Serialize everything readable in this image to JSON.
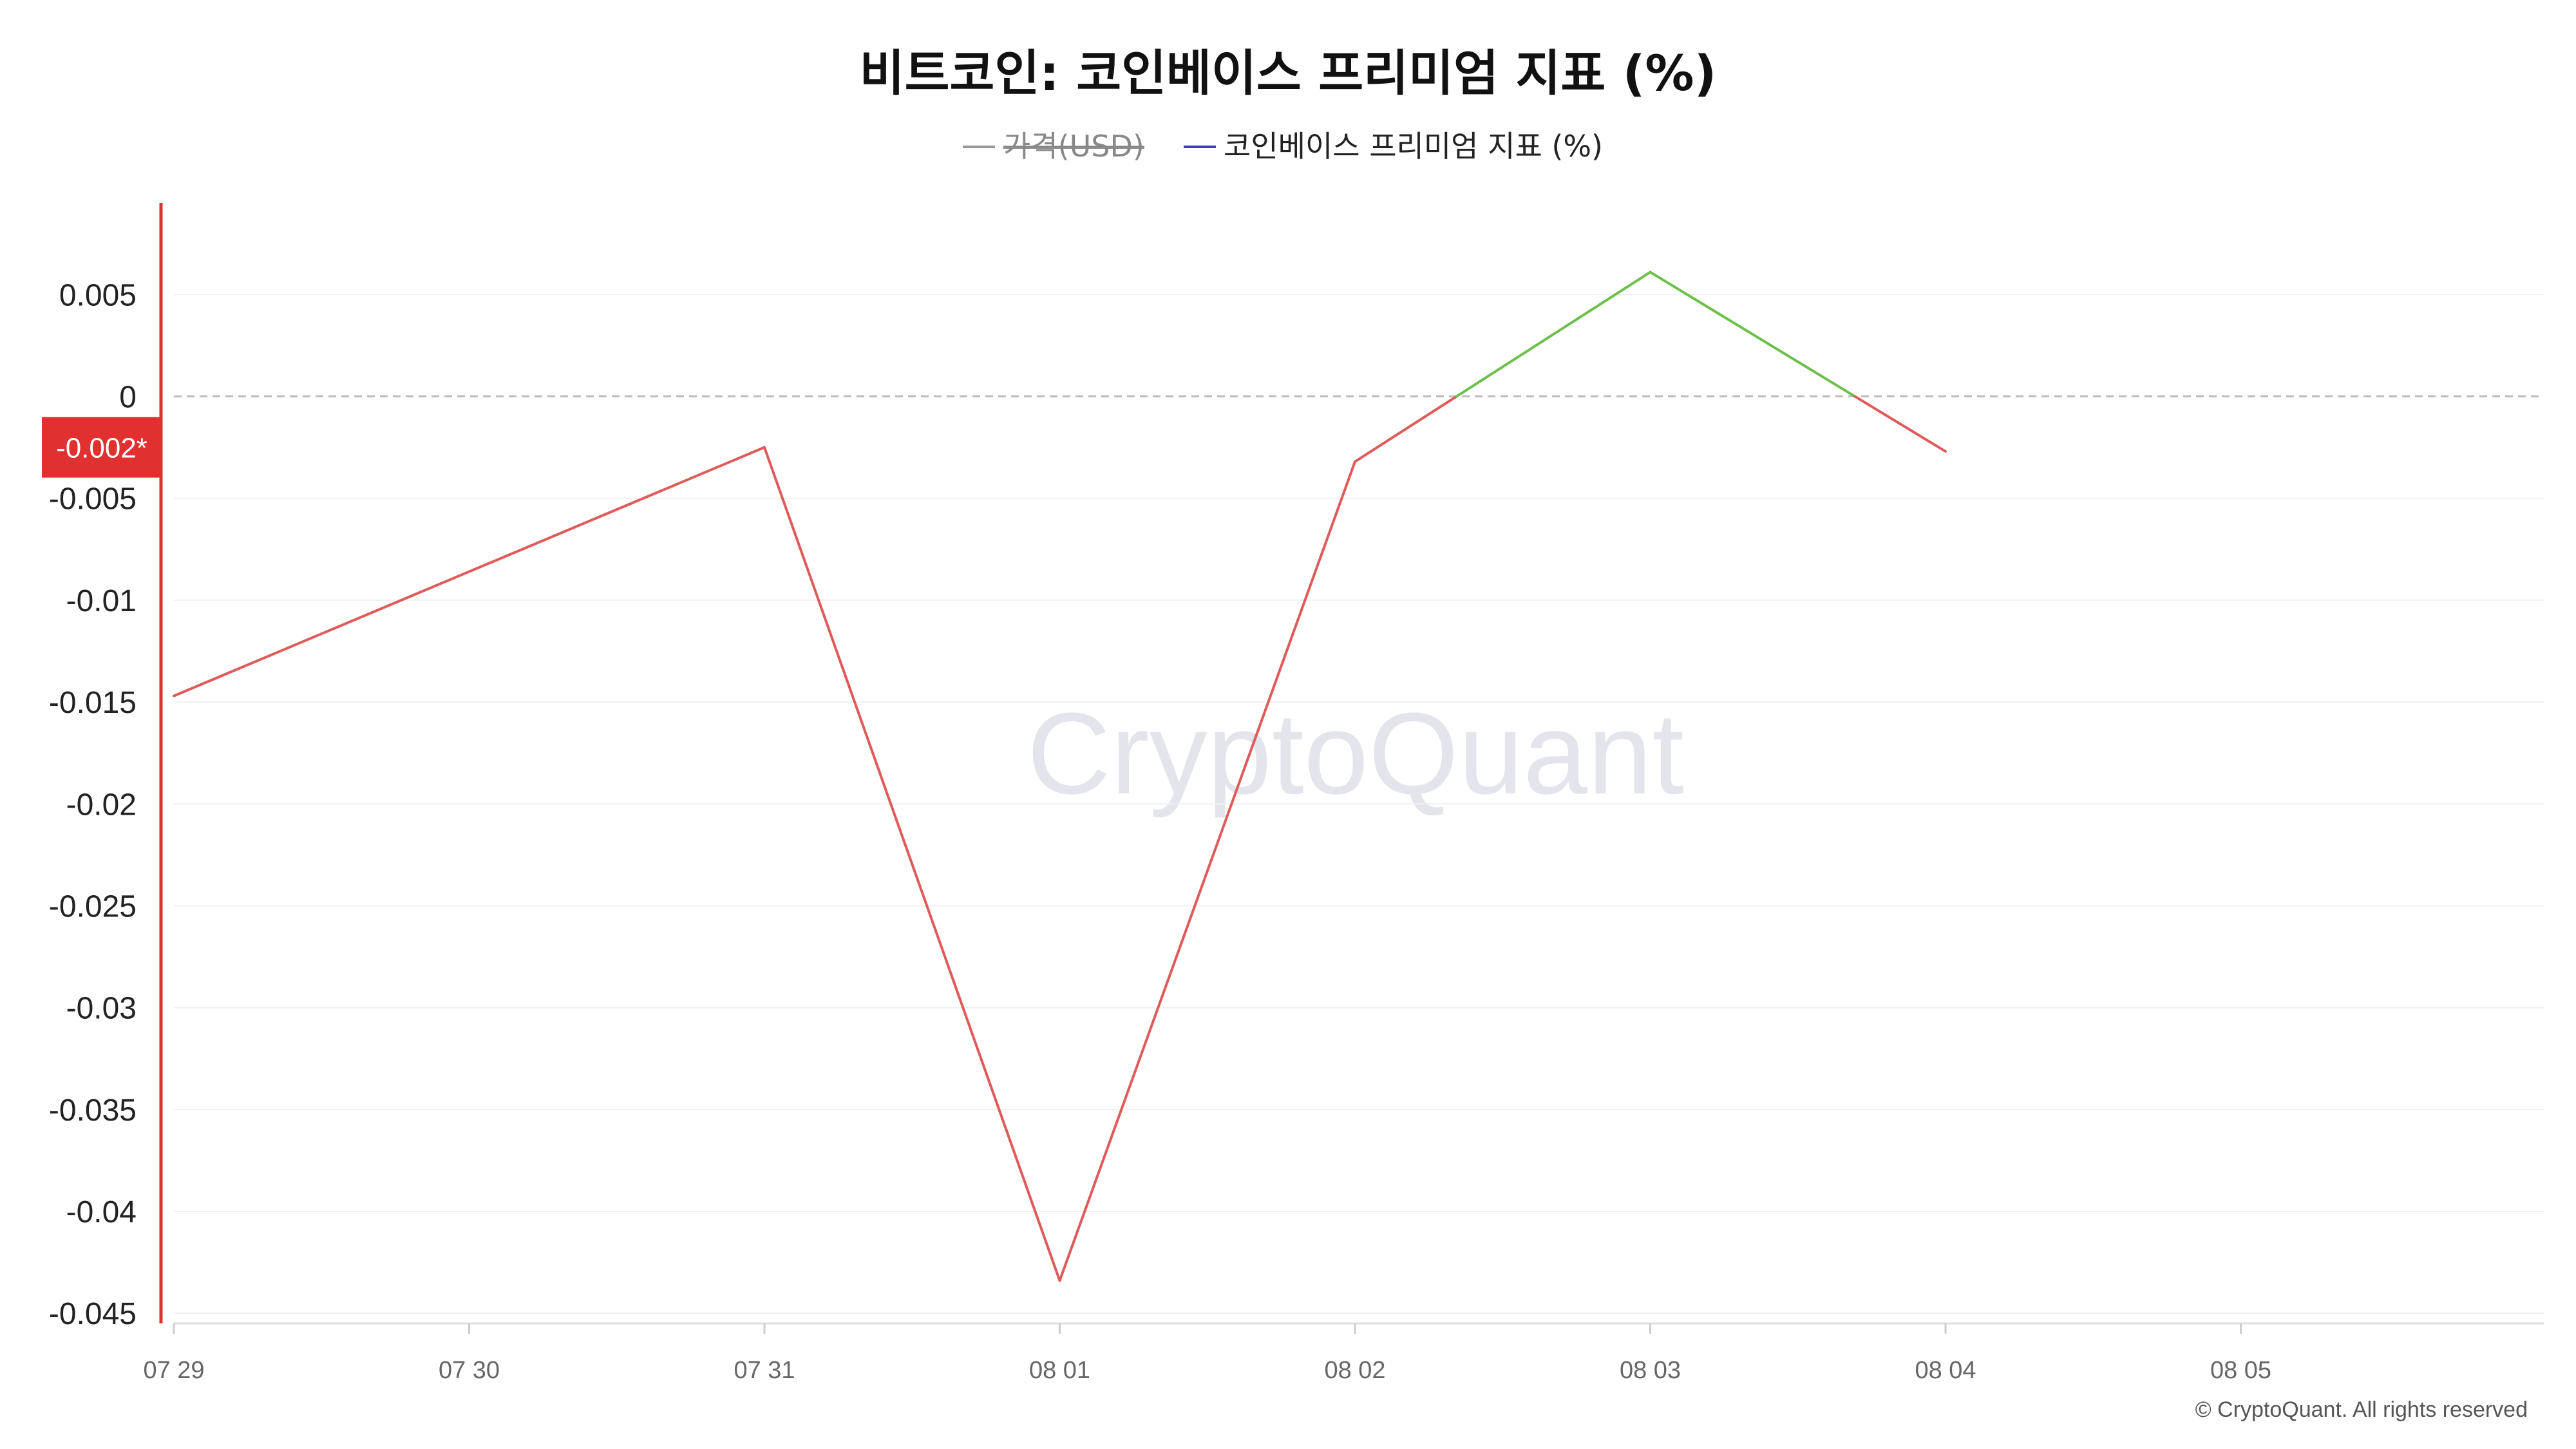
{
  "chart_data": {
    "type": "line",
    "title": "비트코인: 코인베이스 프리미엄 지표 (%)",
    "legend": [
      {
        "name": "가격(USD)",
        "color": "#999999",
        "disabled": true
      },
      {
        "name": "코인베이스 프리미엄 지표 (%)",
        "color": "#3b3bc4",
        "disabled": false
      }
    ],
    "legend_position": "top-center",
    "x_ticks": [
      "07 29",
      "07 30",
      "07 31",
      "08 01",
      "08 02",
      "08 03",
      "08 04",
      "08 05"
    ],
    "series": [
      {
        "name": "코인베이스 프리미엄 지표 (%)",
        "x": [
          "07 29",
          "07 31",
          "08 01",
          "08 02",
          "08 03",
          "08 04"
        ],
        "values": [
          -0.0147,
          -0.0025,
          -0.0434,
          -0.0032,
          0.0061,
          -0.0027
        ]
      }
    ],
    "y_ticks": [
      "0.005",
      "0",
      "-0.005",
      "-0.01",
      "-0.015",
      "-0.02",
      "-0.025",
      "-0.03",
      "-0.035",
      "-0.04",
      "-0.045"
    ],
    "y_tick_values": [
      0.005,
      0,
      -0.005,
      -0.01,
      -0.015,
      -0.02,
      -0.025,
      -0.03,
      -0.035,
      -0.04,
      -0.045
    ],
    "ylim": [
      -0.0455,
      0.0095
    ],
    "xlim": [
      "07 29",
      "08 05"
    ],
    "current_value_label": "-0.002*",
    "current_value": -0.0025,
    "colors": {
      "positive": "#6cc04a",
      "negative": "#e05a5a",
      "axis_left": "#e03030",
      "grid": "#f0f0f0",
      "zero_line": "#bbbbbb",
      "label_bg": "#e03030"
    },
    "grid": true,
    "watermark": "CryptoQuant",
    "copyright": "© CryptoQuant. All rights reserved"
  }
}
